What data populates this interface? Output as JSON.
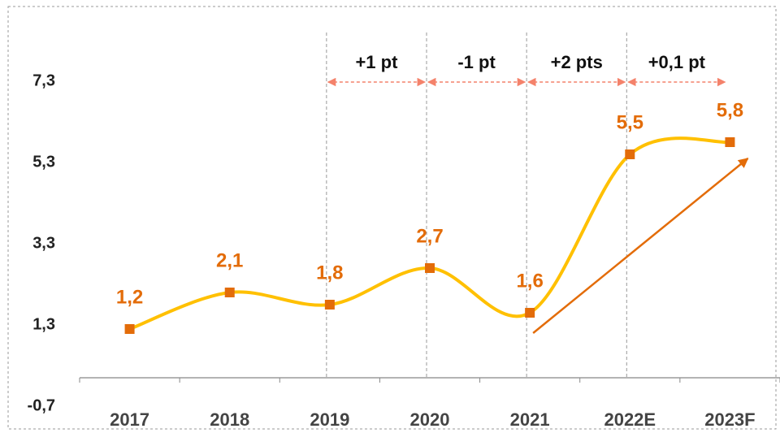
{
  "chart_data": {
    "type": "line",
    "categories": [
      "2017",
      "2018",
      "2019",
      "2020",
      "2021",
      "2022E",
      "2023F"
    ],
    "series": [
      {
        "color": "#ffc000",
        "marker_color": "#e36c09",
        "values": [
          1.2,
          2.1,
          1.8,
          2.7,
          1.6,
          5.5,
          5.8
        ],
        "value_labels": [
          "1,2",
          "2,1",
          "1,8",
          "2,7",
          "1,6",
          "5,5",
          "5,8"
        ]
      }
    ],
    "ylim": [
      -0.7,
      7.3
    ],
    "yticks": [
      {
        "value": -0.7,
        "label": "-0,7"
      },
      {
        "value": 1.3,
        "label": "1,3"
      },
      {
        "value": 3.3,
        "label": "3,3"
      },
      {
        "value": 5.3,
        "label": "5,3"
      },
      {
        "value": 7.3,
        "label": "7,3"
      }
    ],
    "annotations": [
      "+1 pt",
      "-1 pt",
      "+2 pts",
      "+0,1 pt"
    ]
  }
}
